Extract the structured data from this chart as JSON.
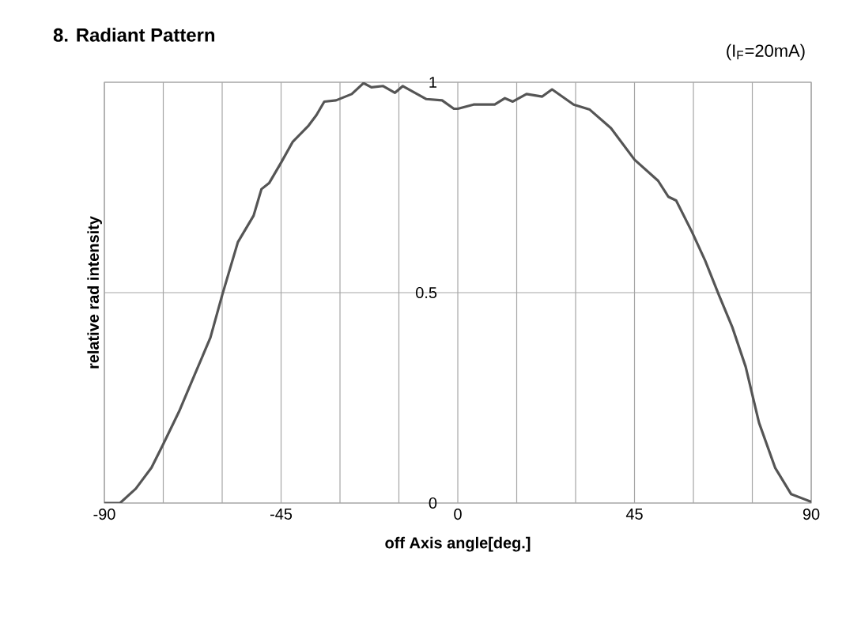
{
  "chart_data": {
    "type": "line",
    "title": "8. Radiant Pattern",
    "subtitle": "(I$_{F}$=20mA)",
    "xlabel": "off Axis angle[deg.]",
    "ylabel": "relative rad intensity",
    "x": [
      -90,
      -86,
      -82,
      -78,
      -75,
      -71,
      -67,
      -63,
      -60,
      -58,
      -56,
      -52,
      -50,
      -48,
      -45,
      -42,
      -38,
      -36,
      -34,
      -31,
      -27,
      -24,
      -22,
      -19,
      -16,
      -14,
      -8,
      -4,
      -1,
      0,
      4,
      9.4,
      12,
      14,
      17.5,
      21.5,
      24,
      29.5,
      33.6,
      39,
      45,
      51,
      53.6,
      55.6,
      59.6,
      63,
      66.5,
      69.9,
      73.3,
      76.7,
      80.8,
      84.9,
      90
    ],
    "series": [
      {
        "color": "#555555",
        "values": [
          0.0,
          0.0,
          0.034,
          0.084,
          0.14,
          0.217,
          0.305,
          0.393,
          0.494,
          0.557,
          0.62,
          0.683,
          0.746,
          0.761,
          0.809,
          0.859,
          0.897,
          0.922,
          0.954,
          0.957,
          0.972,
          0.998,
          0.988,
          0.991,
          0.975,
          0.991,
          0.96,
          0.957,
          0.937,
          0.937,
          0.947,
          0.947,
          0.962,
          0.954,
          0.972,
          0.966,
          0.983,
          0.947,
          0.935,
          0.891,
          0.816,
          0.766,
          0.728,
          0.719,
          0.645,
          0.576,
          0.494,
          0.418,
          0.324,
          0.191,
          0.084,
          0.021,
          0.003
        ]
      }
    ],
    "xlim": [
      -90,
      90
    ],
    "ylim": [
      0,
      1
    ],
    "xticks": [
      -90,
      {
        "value": -75,
        "label": null
      },
      {
        "value": -60,
        "label": null
      },
      -45,
      {
        "value": -30,
        "label": null
      },
      {
        "value": -15,
        "label": null
      },
      0,
      {
        "value": 15,
        "label": null
      },
      {
        "value": 30,
        "label": null
      },
      45,
      {
        "value": 60,
        "label": null
      },
      {
        "value": 75,
        "label": null
      },
      90
    ],
    "yticks": [
      0,
      0.5,
      1
    ],
    "grid": true,
    "line_style": "solid",
    "marker": "none"
  }
}
